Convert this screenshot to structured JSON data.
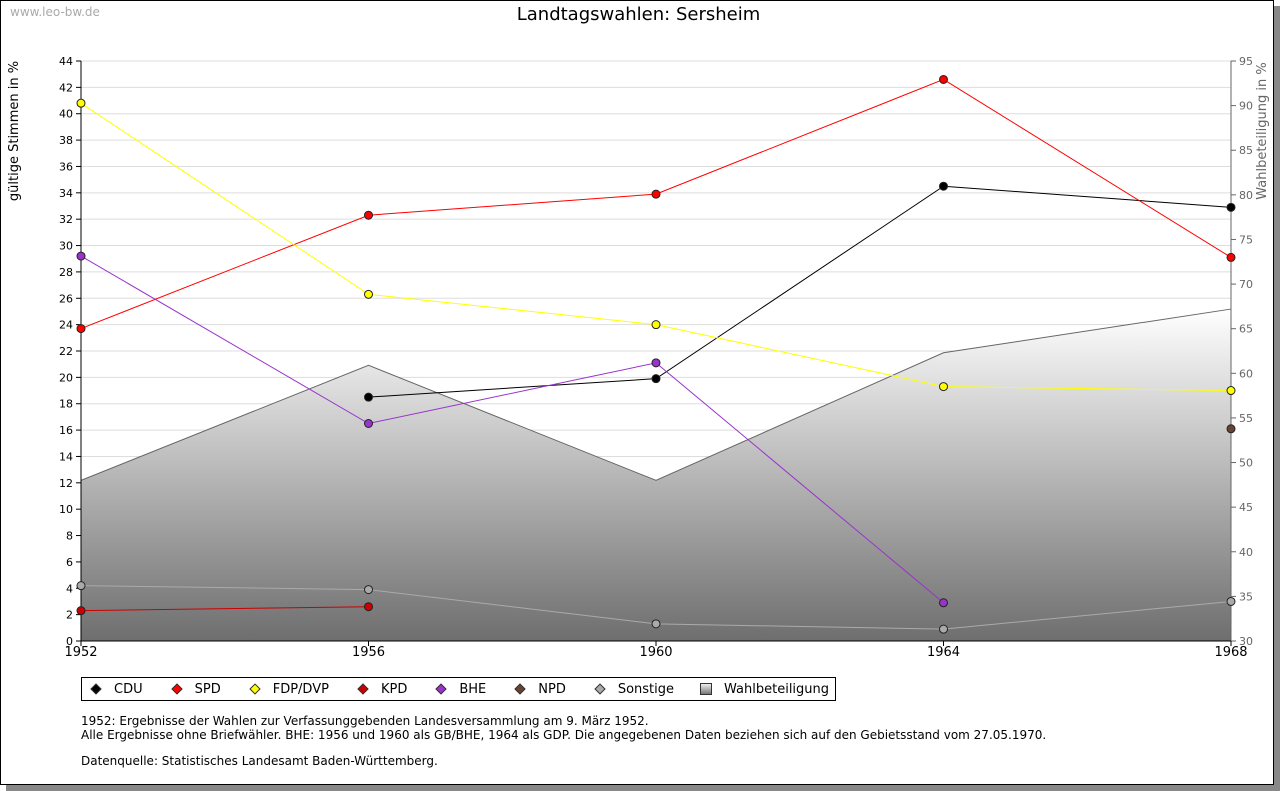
{
  "watermark": "www.leo-bw.de",
  "chart_data": {
    "type": "line",
    "title": "Landtagswahlen: Sersheim",
    "ylabel": "gültige Stimmen in %",
    "y2label": "Wahlbeteiligung in %",
    "x": [
      1952,
      1956,
      1960,
      1964,
      1968
    ],
    "x_ticks": [
      "1952",
      "1956",
      "1960",
      "1964",
      "1968"
    ],
    "ylim": [
      0,
      44
    ],
    "y_ticks": [
      "0",
      "2",
      "4",
      "6",
      "8",
      "10",
      "12",
      "14",
      "16",
      "18",
      "20",
      "22",
      "24",
      "26",
      "28",
      "30",
      "32",
      "34",
      "36",
      "38",
      "40",
      "42",
      "44"
    ],
    "y2lim": [
      30,
      95
    ],
    "y2_ticks": [
      "30",
      "35",
      "40",
      "45",
      "50",
      "55",
      "60",
      "65",
      "70",
      "75",
      "80",
      "85",
      "90",
      "95"
    ],
    "grid": true,
    "series": [
      {
        "name": "CDU",
        "color": "#000000",
        "values": [
          null,
          18.5,
          19.9,
          34.5,
          32.9
        ]
      },
      {
        "name": "SPD",
        "color": "#ff0000",
        "values": [
          23.7,
          32.3,
          33.9,
          42.6,
          29.1
        ]
      },
      {
        "name": "FDP/DVP",
        "color": "#ffff00",
        "values": [
          40.8,
          26.3,
          24.0,
          19.3,
          19.0
        ]
      },
      {
        "name": "KPD",
        "color": "#cc0000",
        "values": [
          2.3,
          2.6,
          null,
          null,
          null
        ]
      },
      {
        "name": "BHE",
        "color": "#9933cc",
        "values": [
          29.2,
          16.5,
          21.1,
          2.9,
          null
        ]
      },
      {
        "name": "NPD",
        "color": "#664433",
        "values": [
          null,
          null,
          null,
          null,
          16.1
        ]
      },
      {
        "name": "Sonstige",
        "color": "#aaaaaa",
        "values": [
          4.2,
          3.9,
          1.3,
          0.9,
          3.0
        ]
      }
    ],
    "turnout": {
      "name": "Wahlbeteiligung",
      "axis": "right",
      "values": [
        48.0,
        60.9,
        48.0,
        62.3,
        67.2
      ]
    },
    "legend_position": "bottom-left"
  },
  "notes": [
    "1952: Ergebnisse der Wahlen zur Verfassunggebenden Landesversammlung am 9. März 1952.",
    "Alle Ergebnisse ohne Briefwähler. BHE: 1956 und 1960 als GB/BHE, 1964 als GDP. Die angegebenen Daten beziehen sich auf den Gebietsstand vom 27.05.1970.",
    "Datenquelle: Statistisches Landesamt Baden-Württemberg."
  ]
}
